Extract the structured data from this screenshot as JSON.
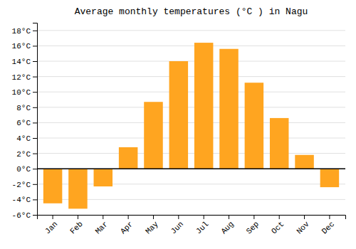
{
  "chart_data": {
    "type": "bar",
    "title": "Average monthly temperatures (°C ) in Nagu",
    "categories": [
      "Jan",
      "Feb",
      "Mar",
      "Apr",
      "May",
      "Jun",
      "Jul",
      "Aug",
      "Sep",
      "Oct",
      "Nov",
      "Dec"
    ],
    "values": [
      -4.5,
      -5.2,
      -2.3,
      2.8,
      8.7,
      14.0,
      16.4,
      15.6,
      11.2,
      6.6,
      1.8,
      -2.4
    ],
    "color": "#FFA520",
    "ylim": [
      -6,
      19
    ],
    "yticks": [
      {
        "value": -6,
        "label": "-6°C"
      },
      {
        "value": -4,
        "label": "-4°C"
      },
      {
        "value": -2,
        "label": "-2°C"
      },
      {
        "value": 0,
        "label": "0°C"
      },
      {
        "value": 2,
        "label": "2°C"
      },
      {
        "value": 4,
        "label": "4°C"
      },
      {
        "value": 6,
        "label": "6°C"
      },
      {
        "value": 8,
        "label": "8°C"
      },
      {
        "value": 10,
        "label": "10°C"
      },
      {
        "value": 12,
        "label": "12°C"
      },
      {
        "value": 14,
        "label": "14°C"
      },
      {
        "value": 16,
        "label": "16°C"
      },
      {
        "value": 18,
        "label": "18°C"
      }
    ],
    "grid": true
  }
}
